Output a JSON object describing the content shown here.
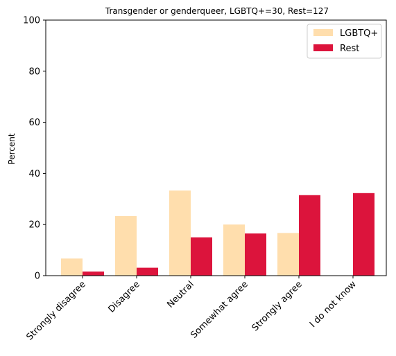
{
  "chart_data": {
    "type": "bar",
    "title": "Transgender or genderqueer, LGBTQ+=30, Rest=127",
    "xlabel": "",
    "ylabel": "Percent",
    "ylim": [
      0,
      100
    ],
    "yticks": [
      0,
      20,
      40,
      60,
      80,
      100
    ],
    "categories": [
      "Strongly disagree",
      "Disagree",
      "Neutral",
      "Somewhat agree",
      "Strongly agree",
      "I do not know"
    ],
    "series": [
      {
        "name": "LGBTQ+",
        "color": "#FFDEAD",
        "values": [
          6.7,
          23.3,
          33.3,
          20.0,
          16.7,
          0.0
        ]
      },
      {
        "name": "Rest",
        "color": "#DC143C",
        "values": [
          1.6,
          3.1,
          15.0,
          16.5,
          31.5,
          32.3
        ]
      }
    ],
    "grid": false,
    "legend_position": "top-right"
  }
}
